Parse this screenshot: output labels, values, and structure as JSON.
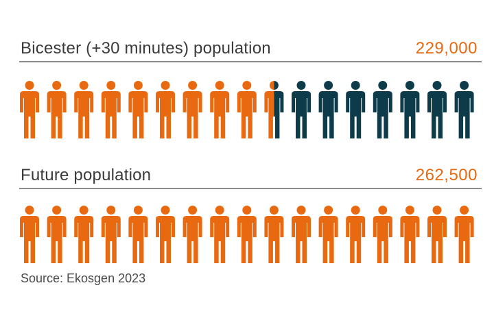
{
  "colors": {
    "current": "#e8690f",
    "remaining": "#0e3b4a"
  },
  "icon": "person-icon",
  "chart_data": {
    "type": "pictogram",
    "rows": [
      {
        "label": "Bicester (+30 minutes) population",
        "value_label": "229,000",
        "value": 229000,
        "icons_total": 17,
        "icons_filled": 9.5
      },
      {
        "label": "Future population",
        "value_label": "262,500",
        "value": 262500,
        "icons_total": 17,
        "icons_filled": 17
      }
    ]
  },
  "source": "Source: Ekosgen 2023"
}
